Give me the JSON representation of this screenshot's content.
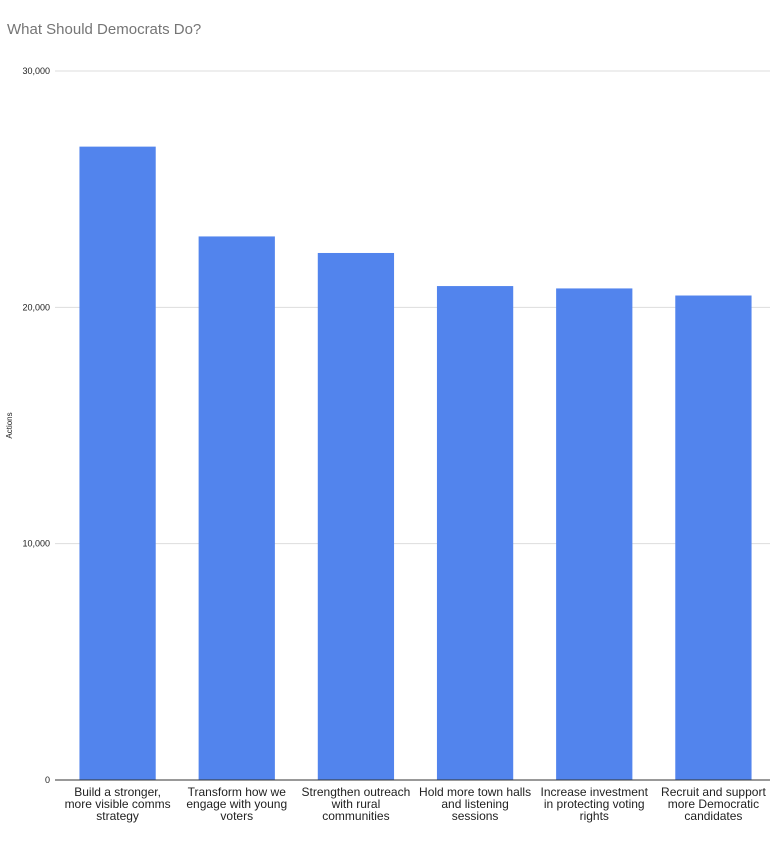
{
  "chart_data": {
    "type": "bar",
    "title": "What Should Democrats Do?",
    "ylabel": "Actions",
    "xlabel": "",
    "ylim": [
      0,
      30000
    ],
    "yticks": [
      0,
      10000,
      20000,
      30000
    ],
    "ytick_labels": [
      "0",
      "10,000",
      "20,000",
      "30,000"
    ],
    "grid": true,
    "legend": "none",
    "bar_color": "#5284ED",
    "categories": [
      [
        "Build a stronger,",
        "more visible comms",
        "strategy"
      ],
      [
        "Transform how we",
        "engage with young",
        "voters"
      ],
      [
        "Strengthen outreach",
        "with rural",
        "communities"
      ],
      [
        "Hold more town halls",
        "and listening",
        "sessions"
      ],
      [
        "Increase investment",
        "in protecting voting",
        "rights"
      ],
      [
        "Recruit and support",
        "more Democratic",
        "candidates"
      ]
    ],
    "values": [
      26800,
      23000,
      22300,
      20900,
      20800,
      20500
    ]
  }
}
